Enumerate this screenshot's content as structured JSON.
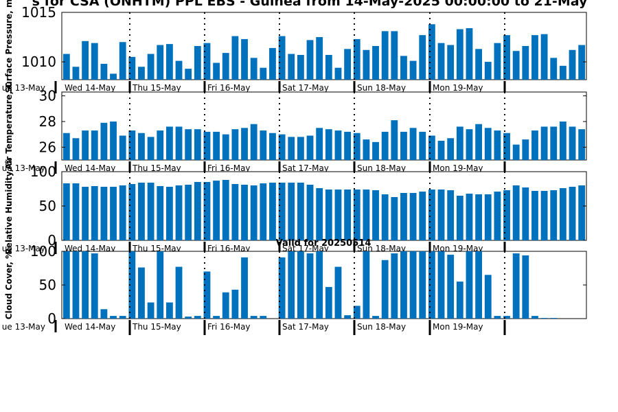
{
  "title": "s for CSA (ONHTM) PPL EBS  - Guinea from 14-May-2025 00:00:00 to 21-May",
  "colors": {
    "bar": "#0072bd",
    "axis": "#000000",
    "day_line": "#000000"
  },
  "day_labels": [
    "Wed 14-May",
    "Thu 15-May",
    "Fri 16-May",
    "Sat 17-May",
    "Sun 18-May",
    "Mon 19-May"
  ],
  "left_day_label": "ue 13-May",
  "chart_data": [
    {
      "type": "bar",
      "ylabel": "Surface Pressure, m",
      "ylim": [
        1008.2,
        1015
      ],
      "yticks": [
        1010,
        1015
      ],
      "day_label_rows": [
        "Wed 14-May",
        "Thu 15-May",
        "Fri 16-May",
        "Sat 17-May",
        "Sun 18-May",
        "Mon 19-May"
      ],
      "left_label": "ue 13-May",
      "values": [
        1010.8,
        1009.5,
        1012.1,
        1011.9,
        1009.8,
        1008.8,
        1012.0,
        1010.5,
        1009.5,
        1010.8,
        1011.7,
        1011.8,
        1010.1,
        1009.3,
        1011.6,
        1011.9,
        1009.9,
        1010.9,
        1012.6,
        1012.3,
        1010.4,
        1009.4,
        1011.4,
        1012.6,
        1010.8,
        1010.7,
        1012.2,
        1012.5,
        1010.7,
        1009.4,
        1011.3,
        1012.3,
        1011.2,
        1011.6,
        1013.1,
        1013.1,
        1010.6,
        1010.1,
        1012.7,
        1013.8,
        1011.9,
        1011.7,
        1013.3,
        1013.4,
        1011.3,
        1010.0,
        1011.9,
        1012.7,
        1011.1,
        1011.6,
        1012.7,
        1012.8,
        1010.4,
        1009.6,
        1011.2,
        1011.7
      ]
    },
    {
      "type": "bar",
      "ylabel": "Air Temperature, C",
      "ylim": [
        25,
        30.3
      ],
      "yticks": [
        26,
        28,
        30
      ],
      "day_label_rows": [
        "Wed 14-May",
        "Thu 15-May",
        "Fri 16-May",
        "Sat 17-May",
        "Sun 18-May",
        "Mon 19-May"
      ],
      "left_label": "ue 13-May",
      "values": [
        27.1,
        26.7,
        27.3,
        27.3,
        27.9,
        28.0,
        26.9,
        27.3,
        27.1,
        26.8,
        27.3,
        27.6,
        27.6,
        27.4,
        27.4,
        27.2,
        27.2,
        27.0,
        27.4,
        27.5,
        27.8,
        27.3,
        27.1,
        27.0,
        26.8,
        26.8,
        26.9,
        27.5,
        27.4,
        27.3,
        27.2,
        27.1,
        26.6,
        26.4,
        27.2,
        28.1,
        27.2,
        27.5,
        27.2,
        26.9,
        26.5,
        26.7,
        27.6,
        27.4,
        27.8,
        27.5,
        27.3,
        27.1,
        26.2,
        26.6,
        27.3,
        27.6,
        27.6,
        28.0,
        27.6,
        27.4
      ]
    },
    {
      "type": "bar",
      "ylabel": "Relative Humidity, %",
      "ylim": [
        0,
        100
      ],
      "yticks": [
        0,
        50,
        100
      ],
      "day_label_rows": [
        "Wed 14-May",
        "Thu 15-May",
        "Fri 16-May",
        "Sat 17-May",
        "Sun 18-May",
        "Mon 19-May"
      ],
      "left_label": "ue 13-May",
      "values": [
        83,
        83,
        78,
        79,
        78,
        78,
        80,
        82,
        84,
        84,
        79,
        78,
        80,
        81,
        85,
        85,
        87,
        88,
        82,
        81,
        80,
        83,
        84,
        84,
        84,
        84,
        81,
        76,
        74,
        74,
        74,
        74,
        74,
        73,
        67,
        63,
        69,
        69,
        71,
        74,
        74,
        73,
        65,
        68,
        67,
        67,
        71,
        73,
        80,
        77,
        72,
        72,
        73,
        76,
        78,
        80
      ]
    },
    {
      "type": "bar",
      "ylabel": "Cloud Cover, %",
      "subtitle": "Valid for 20250514",
      "ylim": [
        0,
        100
      ],
      "yticks": [
        0,
        50,
        100
      ],
      "day_label_rows": [
        "Wed 14-May",
        "Thu 15-May",
        "Fri 16-May",
        "Sat 17-May",
        "Sun 18-May",
        "Mon 19-May"
      ],
      "left_label": "ue 13-May",
      "values": [
        100,
        100,
        100,
        97,
        14,
        4,
        4,
        100,
        76,
        24,
        100,
        24,
        77,
        3,
        4,
        70,
        4,
        39,
        43,
        91,
        4,
        4,
        0,
        91,
        100,
        100,
        97,
        100,
        47,
        77,
        5,
        19,
        100,
        4,
        87,
        97,
        100,
        100,
        100,
        100,
        100,
        95,
        55,
        100,
        100,
        65,
        4,
        4,
        97,
        94,
        4,
        1,
        1,
        0,
        0,
        0
      ]
    }
  ]
}
